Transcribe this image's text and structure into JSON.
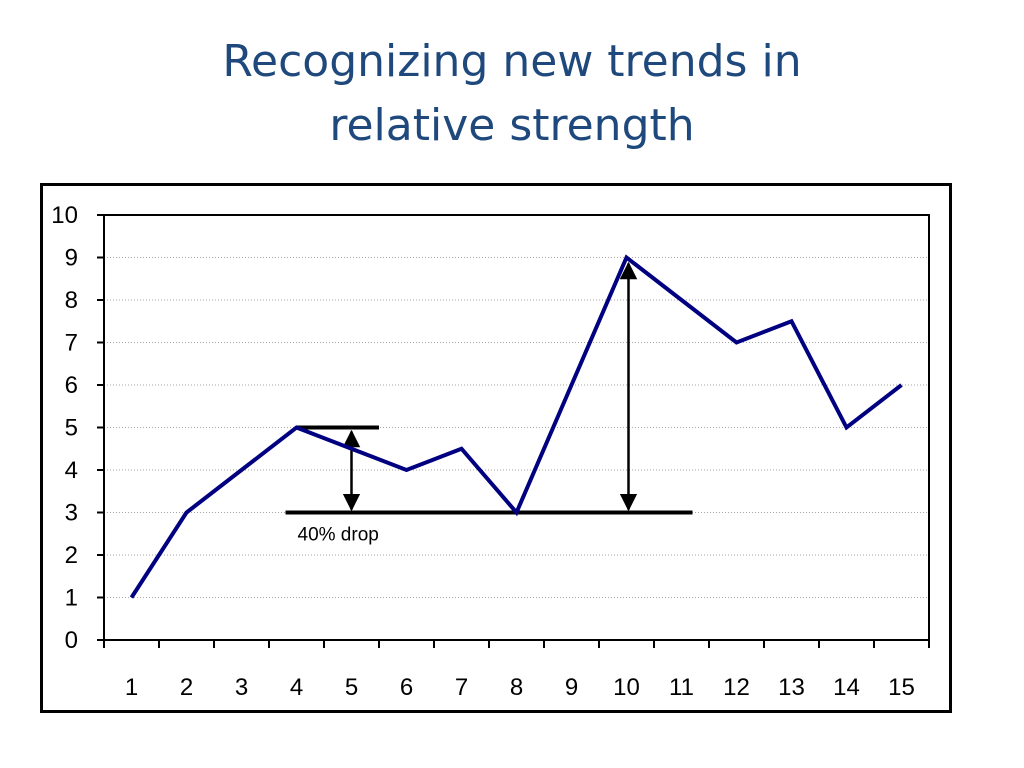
{
  "slide": {
    "title_line1": "Recognizing new trends in",
    "title_line2": "relative strength"
  },
  "chart_data": {
    "type": "line",
    "title": "",
    "xlabel": "",
    "ylabel": "",
    "categories": [
      "1",
      "2",
      "3",
      "4",
      "5",
      "6",
      "7",
      "8",
      "9",
      "10",
      "11",
      "12",
      "13",
      "14",
      "15"
    ],
    "x": [
      1,
      2,
      3,
      4,
      5,
      6,
      7,
      8,
      9,
      10,
      11,
      12,
      13,
      14,
      15
    ],
    "series": [
      {
        "values": [
          1,
          3,
          4,
          5,
          4.5,
          4,
          4.5,
          3,
          6,
          9,
          8,
          7,
          7.5,
          5,
          6
        ],
        "color": "#000080"
      }
    ],
    "ylim": [
      0,
      10
    ],
    "yticks": [
      0,
      1,
      2,
      3,
      4,
      5,
      6,
      7,
      8,
      9,
      10
    ],
    "grid": true,
    "legend": "none",
    "annotations": {
      "drop_label": "40% drop",
      "peak_level": 5,
      "trough_level": 3,
      "new_peak_level": 9
    }
  }
}
